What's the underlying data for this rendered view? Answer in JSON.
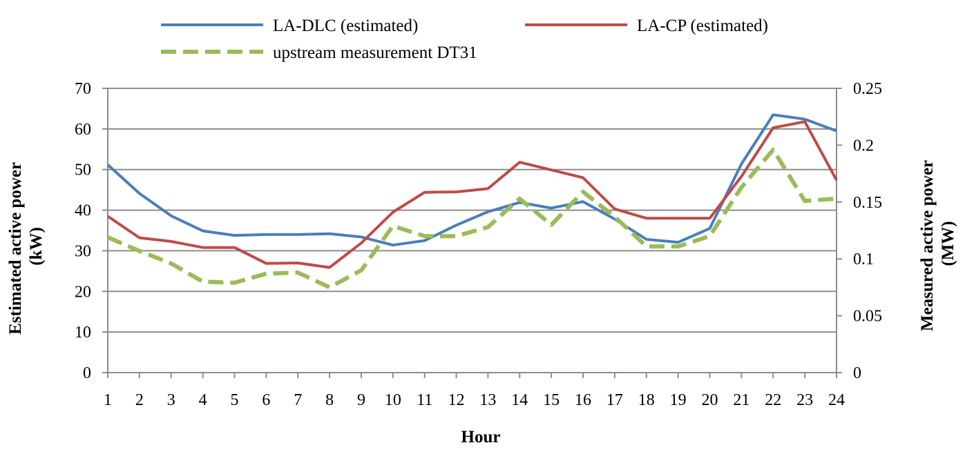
{
  "chart_data": {
    "type": "line",
    "title": "",
    "xlabel": "Hour",
    "ylabel_left": [
      "Estimated active power",
      "(kW)"
    ],
    "ylabel_right": [
      "Measured active power",
      "(MW)"
    ],
    "x": [
      1,
      2,
      3,
      4,
      5,
      6,
      7,
      8,
      9,
      10,
      11,
      12,
      13,
      14,
      15,
      16,
      17,
      18,
      19,
      20,
      21,
      22,
      23,
      24
    ],
    "x_tick_labels": [
      "1",
      "2",
      "3",
      "4",
      "5",
      "6",
      "7",
      "8",
      "9",
      "10",
      "11",
      "12",
      "13",
      "14",
      "15",
      "16",
      "17",
      "18",
      "19",
      "20",
      "21",
      "22",
      "23",
      "24"
    ],
    "ylim_left": [
      0,
      70
    ],
    "ylim_right": [
      0,
      0.25
    ],
    "y_left_ticks": [
      "0",
      "10",
      "20",
      "30",
      "40",
      "50",
      "60",
      "70"
    ],
    "y_right_ticks": [
      "0",
      "0.05",
      "0.1",
      "0.15",
      "0.2",
      "0.25"
    ],
    "grid": true,
    "legend_position": "top",
    "series": [
      {
        "name": "LA-DLC (estimated)",
        "axis": "left",
        "color": "#4a7ebb",
        "style": "solid",
        "values": [
          51.2,
          44.1,
          38.6,
          34.9,
          33.8,
          34.0,
          34.0,
          34.2,
          33.4,
          31.4,
          32.5,
          36.3,
          39.6,
          41.9,
          40.5,
          42.1,
          37.8,
          32.8,
          32.1,
          35.5,
          51.4,
          63.5,
          62.4,
          59.5
        ]
      },
      {
        "name": "LA-CP (estimated)",
        "axis": "left",
        "color": "#be4b48",
        "style": "solid",
        "values": [
          38.5,
          33.2,
          32.3,
          30.8,
          30.8,
          26.9,
          27.0,
          25.9,
          31.9,
          39.5,
          44.4,
          44.5,
          45.3,
          51.8,
          49.9,
          48.0,
          40.3,
          38.0,
          38.0,
          38.0,
          48.3,
          60.3,
          61.8,
          47.4
        ]
      },
      {
        "name": "upstream measurement DT31",
        "axis": "right",
        "color": "#9bbb59",
        "style": "dashed",
        "values": [
          0.119,
          0.107,
          0.096,
          0.08,
          0.079,
          0.087,
          0.088,
          0.075,
          0.09,
          0.129,
          0.12,
          0.12,
          0.128,
          0.153,
          0.13,
          0.159,
          0.137,
          0.111,
          0.111,
          0.12,
          0.163,
          0.196,
          0.151,
          0.153
        ]
      }
    ]
  }
}
